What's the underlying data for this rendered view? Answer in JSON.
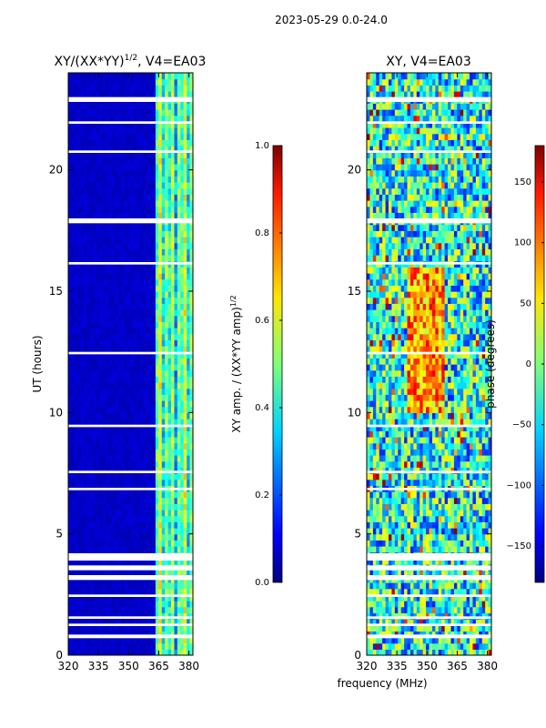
{
  "figure": {
    "suptitle": "2023-05-29 0.0-24.0",
    "xlabel": "frequency (MHz)"
  },
  "chart_data": [
    {
      "type": "heatmap",
      "title": "XY/(XX*YY)",
      "title_exp": "1/2",
      "title_suffix": ", V4=EA03",
      "xlabel": "",
      "ylabel": "UT (hours)",
      "xlim": [
        320,
        382
      ],
      "ylim": [
        0,
        24
      ],
      "xticks": [
        320,
        335,
        350,
        365,
        380
      ],
      "yticks": [
        0,
        5,
        10,
        15,
        20
      ],
      "colorbar": {
        "label": "XY amp. / (XX*YY amp)",
        "label_exp": "1/2",
        "range": [
          0.0,
          1.0
        ],
        "ticks": [
          "0.0",
          "0.2",
          "0.4",
          "0.6",
          "0.8",
          "1.0"
        ]
      },
      "background_value": 0.05,
      "active_band_start_mhz": 363,
      "active_band_values": [
        0.4,
        0.55,
        0.3,
        0.5,
        0.45,
        0.6,
        0.35,
        0.5
      ]
    },
    {
      "type": "heatmap",
      "title": "XY, V4=EA03",
      "xlabel": "",
      "ylabel": "",
      "xlim": [
        320,
        382
      ],
      "ylim": [
        0,
        24
      ],
      "xticks": [
        320,
        335,
        350,
        365,
        380
      ],
      "yticks": [
        0,
        5,
        10,
        15,
        20
      ],
      "colorbar": {
        "label": "phase (degrees)",
        "range": [
          -180,
          180
        ],
        "ticks": [
          "-150",
          "-100",
          "-50",
          "0",
          "50",
          "100",
          "150"
        ]
      },
      "hot_region": {
        "freq_mhz": [
          340,
          358
        ],
        "ut_hours": [
          10,
          16
        ]
      }
    }
  ],
  "gap_bands_ut": [
    [
      0.7,
      0.85
    ],
    [
      1.2,
      1.3
    ],
    [
      1.5,
      1.6
    ],
    [
      2.4,
      2.5
    ],
    [
      3.1,
      3.3
    ],
    [
      3.5,
      3.7
    ],
    [
      3.9,
      4.2
    ],
    [
      6.8,
      6.9
    ],
    [
      7.5,
      7.6
    ],
    [
      9.4,
      9.5
    ],
    [
      12.4,
      12.5
    ],
    [
      16.1,
      16.2
    ],
    [
      17.8,
      18.0
    ],
    [
      20.7,
      20.8
    ],
    [
      21.9,
      22.0
    ],
    [
      22.8,
      23.0
    ]
  ]
}
